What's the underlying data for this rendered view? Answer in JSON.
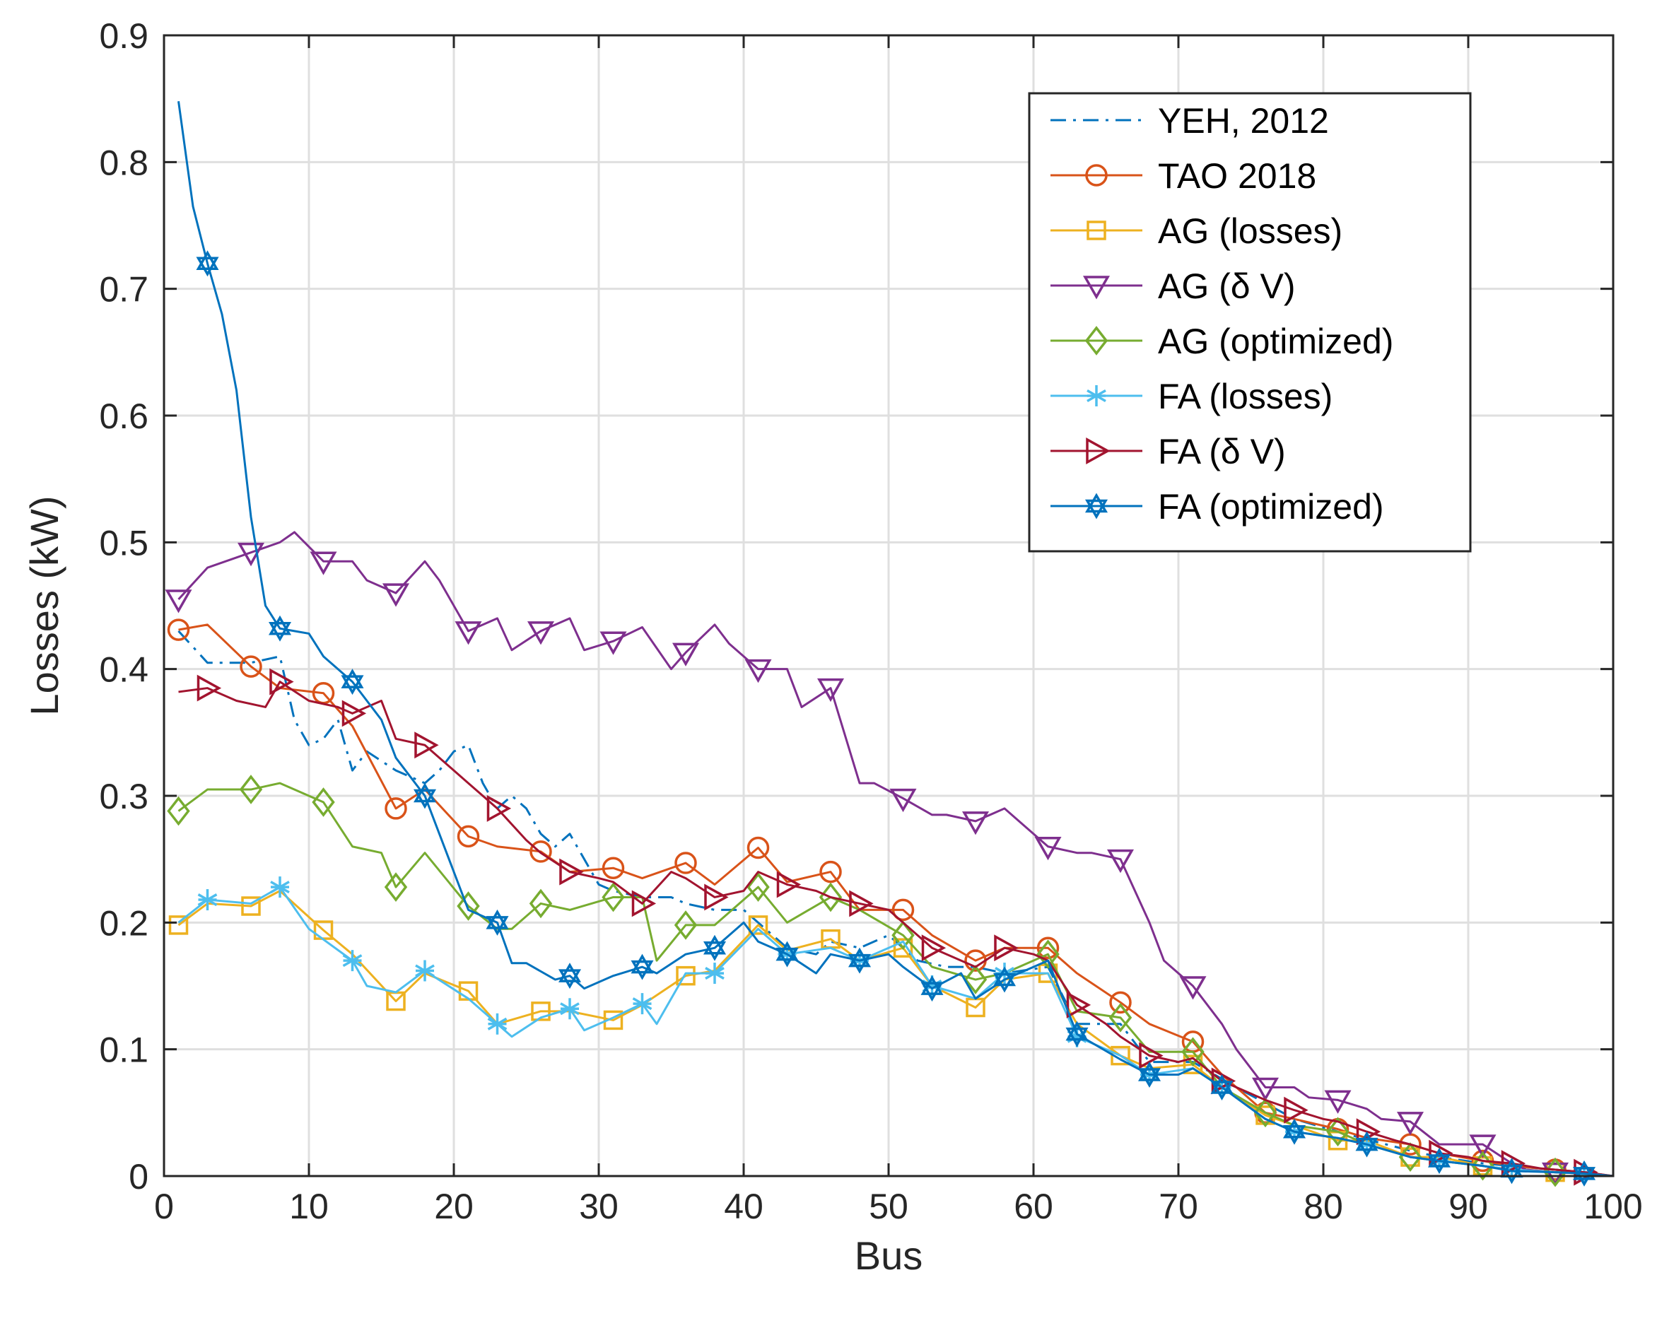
{
  "chart_data": {
    "type": "line",
    "xlabel": "Bus",
    "ylabel": "Losses (kW)",
    "xlim": [
      0,
      100
    ],
    "ylim": [
      0,
      0.9
    ],
    "xticks": [
      0,
      10,
      20,
      30,
      40,
      50,
      60,
      70,
      80,
      90,
      100
    ],
    "yticks": [
      0,
      0.1,
      0.2,
      0.3,
      0.4,
      0.5,
      0.6,
      0.7,
      0.8,
      0.9
    ],
    "xtick_labels": [
      "0",
      "10",
      "20",
      "30",
      "40",
      "50",
      "60",
      "70",
      "80",
      "90",
      "100"
    ],
    "ytick_labels": [
      "0",
      "0.1",
      "0.2",
      "0.3",
      "0.4",
      "0.5",
      "0.6",
      "0.7",
      "0.8",
      "0.9"
    ],
    "grid": true,
    "legend_position": "top-right",
    "series": [
      {
        "name": "YEH, 2012",
        "color": "#0072BD",
        "dash": "dashdot",
        "marker": "none",
        "x": [
          1,
          3,
          6,
          8,
          9,
          10,
          11,
          12,
          13,
          14,
          16,
          18,
          19,
          20,
          21,
          22,
          23,
          24,
          25,
          26,
          27,
          28,
          29,
          30,
          31,
          33,
          35,
          36,
          38,
          40,
          41,
          43,
          45,
          46,
          48,
          50,
          52,
          54,
          56,
          58,
          61,
          63,
          66,
          68,
          71,
          74,
          78,
          81,
          86,
          88,
          91,
          96,
          98,
          100
        ],
        "y": [
          0.43,
          0.405,
          0.405,
          0.41,
          0.36,
          0.34,
          0.345,
          0.36,
          0.32,
          0.335,
          0.32,
          0.31,
          0.32,
          0.335,
          0.34,
          0.31,
          0.29,
          0.3,
          0.29,
          0.27,
          0.26,
          0.27,
          0.25,
          0.23,
          0.225,
          0.22,
          0.22,
          0.215,
          0.21,
          0.21,
          0.2,
          0.18,
          0.175,
          0.185,
          0.18,
          0.19,
          0.17,
          0.165,
          0.165,
          0.16,
          0.165,
          0.12,
          0.12,
          0.09,
          0.09,
          0.07,
          0.045,
          0.035,
          0.02,
          0.015,
          0.01,
          0.005,
          0.003,
          0.0
        ]
      },
      {
        "name": "TAO 2018",
        "color": "#D95319",
        "dash": "solid",
        "marker": "circle",
        "x": [
          1,
          3,
          6,
          8,
          11,
          13,
          16,
          18,
          21,
          23,
          26,
          28,
          31,
          33,
          36,
          38,
          41,
          43,
          46,
          48,
          51,
          53,
          56,
          58,
          61,
          63,
          66,
          68,
          71,
          73,
          76,
          78,
          81,
          83,
          86,
          88,
          91,
          93,
          96,
          98,
          100
        ],
        "y": [
          0.431,
          0.435,
          0.402,
          0.385,
          0.381,
          0.355,
          0.29,
          0.305,
          0.268,
          0.26,
          0.256,
          0.24,
          0.243,
          0.235,
          0.247,
          0.23,
          0.259,
          0.232,
          0.24,
          0.21,
          0.21,
          0.19,
          0.17,
          0.18,
          0.18,
          0.16,
          0.137,
          0.12,
          0.106,
          0.08,
          0.05,
          0.045,
          0.037,
          0.03,
          0.025,
          0.018,
          0.012,
          0.008,
          0.005,
          0.003,
          0.0
        ],
        "marker_x": [
          1,
          6,
          11,
          16,
          21,
          26,
          31,
          36,
          41,
          46,
          51,
          56,
          61,
          66,
          71,
          76,
          81,
          86,
          91,
          96
        ],
        "marker_y": [
          0.431,
          0.402,
          0.381,
          0.29,
          0.268,
          0.256,
          0.243,
          0.247,
          0.259,
          0.24,
          0.21,
          0.17,
          0.18,
          0.137,
          0.106,
          0.05,
          0.037,
          0.025,
          0.012,
          0.005
        ]
      },
      {
        "name": "AG (losses)",
        "color": "#EDB120",
        "dash": "solid",
        "marker": "square",
        "x": [
          1,
          3,
          6,
          8,
          11,
          13,
          16,
          18,
          21,
          23,
          26,
          28,
          31,
          33,
          36,
          38,
          41,
          43,
          46,
          48,
          51,
          53,
          56,
          58,
          61,
          63,
          66,
          68,
          71,
          73,
          76,
          78,
          81,
          83,
          86,
          88,
          91,
          93,
          96,
          98,
          100
        ],
        "y": [
          0.198,
          0.215,
          0.213,
          0.225,
          0.194,
          0.175,
          0.138,
          0.16,
          0.146,
          0.12,
          0.13,
          0.13,
          0.123,
          0.135,
          0.158,
          0.162,
          0.198,
          0.178,
          0.187,
          0.17,
          0.18,
          0.15,
          0.133,
          0.155,
          0.16,
          0.12,
          0.095,
          0.085,
          0.088,
          0.07,
          0.048,
          0.04,
          0.028,
          0.028,
          0.015,
          0.015,
          0.008,
          0.005,
          0.003,
          0.002,
          0.0
        ],
        "marker_x": [
          1,
          6,
          11,
          16,
          21,
          26,
          31,
          36,
          41,
          46,
          51,
          56,
          61,
          66,
          71,
          76,
          81,
          86,
          91,
          96
        ],
        "marker_y": [
          0.198,
          0.213,
          0.194,
          0.138,
          0.146,
          0.13,
          0.123,
          0.158,
          0.198,
          0.187,
          0.18,
          0.133,
          0.16,
          0.095,
          0.088,
          0.048,
          0.028,
          0.015,
          0.008,
          0.003
        ]
      },
      {
        "name": "AG (δ V)",
        "color": "#7E2F8E",
        "dash": "solid",
        "marker": "triangle-down",
        "x": [
          1,
          3,
          6,
          8,
          9,
          11,
          13,
          14,
          16,
          18,
          19,
          21,
          23,
          24,
          26,
          28,
          29,
          31,
          33,
          35,
          36,
          38,
          39,
          41,
          43,
          44,
          46,
          48,
          49,
          51,
          53,
          54,
          56,
          58,
          59,
          61,
          63,
          64,
          66,
          68,
          69,
          71,
          73,
          74,
          76,
          78,
          79,
          81,
          83,
          84,
          86,
          88,
          89,
          91,
          93,
          94,
          96,
          98,
          100
        ],
        "y": [
          0.455,
          0.48,
          0.492,
          0.5,
          0.508,
          0.485,
          0.485,
          0.47,
          0.46,
          0.485,
          0.47,
          0.43,
          0.44,
          0.415,
          0.43,
          0.44,
          0.415,
          0.422,
          0.433,
          0.4,
          0.413,
          0.435,
          0.42,
          0.4,
          0.4,
          0.37,
          0.385,
          0.31,
          0.31,
          0.298,
          0.285,
          0.285,
          0.28,
          0.29,
          0.28,
          0.26,
          0.255,
          0.255,
          0.25,
          0.2,
          0.17,
          0.15,
          0.12,
          0.1,
          0.07,
          0.07,
          0.062,
          0.06,
          0.053,
          0.045,
          0.043,
          0.025,
          0.025,
          0.025,
          0.01,
          0.005,
          0.003,
          0.002,
          0.0
        ],
        "marker_x": [
          1,
          6,
          11,
          16,
          21,
          26,
          31,
          36,
          41,
          46,
          51,
          56,
          61,
          66,
          71,
          76,
          81,
          86,
          91,
          96
        ],
        "marker_y": [
          0.455,
          0.492,
          0.485,
          0.46,
          0.43,
          0.43,
          0.422,
          0.413,
          0.4,
          0.385,
          0.298,
          0.28,
          0.26,
          0.25,
          0.15,
          0.07,
          0.06,
          0.043,
          0.025,
          0.003
        ]
      },
      {
        "name": "AG (optimized)",
        "color": "#77AC30",
        "dash": "solid",
        "marker": "diamond",
        "x": [
          1,
          3,
          6,
          8,
          11,
          13,
          15,
          16,
          18,
          21,
          23,
          24,
          26,
          28,
          31,
          33,
          34,
          36,
          38,
          41,
          43,
          46,
          48,
          51,
          53,
          56,
          58,
          61,
          63,
          66,
          68,
          71,
          73,
          76,
          78,
          81,
          83,
          86,
          88,
          91,
          93,
          96,
          98,
          100
        ],
        "y": [
          0.288,
          0.305,
          0.305,
          0.31,
          0.295,
          0.26,
          0.255,
          0.228,
          0.255,
          0.213,
          0.195,
          0.195,
          0.215,
          0.21,
          0.22,
          0.22,
          0.17,
          0.198,
          0.198,
          0.228,
          0.2,
          0.22,
          0.21,
          0.19,
          0.165,
          0.155,
          0.16,
          0.175,
          0.13,
          0.125,
          0.098,
          0.098,
          0.07,
          0.05,
          0.04,
          0.035,
          0.025,
          0.015,
          0.012,
          0.008,
          0.005,
          0.003,
          0.002,
          0.0
        ],
        "marker_x": [
          1,
          6,
          11,
          16,
          21,
          26,
          31,
          36,
          41,
          46,
          51,
          56,
          61,
          66,
          71,
          76,
          81,
          86,
          91,
          96
        ],
        "marker_y": [
          0.288,
          0.305,
          0.295,
          0.228,
          0.213,
          0.215,
          0.22,
          0.198,
          0.228,
          0.22,
          0.19,
          0.155,
          0.175,
          0.125,
          0.098,
          0.05,
          0.035,
          0.015,
          0.008,
          0.003
        ]
      },
      {
        "name": "FA (losses)",
        "color": "#4DBEEE",
        "dash": "solid",
        "marker": "asterisk",
        "x": [
          1,
          3,
          6,
          8,
          10,
          13,
          14,
          16,
          18,
          21,
          23,
          24,
          26,
          28,
          29,
          31,
          33,
          34,
          36,
          38,
          41,
          43,
          46,
          48,
          51,
          53,
          56,
          58,
          61,
          63,
          66,
          68,
          71,
          73,
          76,
          78,
          81,
          83,
          86,
          88,
          91,
          93,
          96,
          98,
          100
        ],
        "y": [
          0.2,
          0.218,
          0.215,
          0.228,
          0.195,
          0.17,
          0.15,
          0.145,
          0.162,
          0.14,
          0.12,
          0.11,
          0.125,
          0.132,
          0.115,
          0.125,
          0.136,
          0.12,
          0.16,
          0.16,
          0.195,
          0.175,
          0.18,
          0.17,
          0.185,
          0.15,
          0.14,
          0.16,
          0.16,
          0.11,
          0.095,
          0.08,
          0.085,
          0.07,
          0.045,
          0.035,
          0.03,
          0.025,
          0.015,
          0.012,
          0.008,
          0.005,
          0.003,
          0.002,
          0.0
        ],
        "marker_x": [
          3,
          8,
          13,
          18,
          23,
          28,
          33,
          38,
          43,
          48,
          53,
          58,
          63,
          68,
          73,
          78,
          83,
          88,
          93,
          98
        ],
        "marker_y": [
          0.218,
          0.228,
          0.17,
          0.162,
          0.12,
          0.132,
          0.136,
          0.16,
          0.175,
          0.17,
          0.15,
          0.16,
          0.11,
          0.08,
          0.07,
          0.035,
          0.025,
          0.012,
          0.005,
          0.002
        ]
      },
      {
        "name": "FA (δ V)",
        "color": "#A2142F",
        "dash": "solid",
        "marker": "triangle-right",
        "x": [
          1,
          3,
          5,
          7,
          8,
          10,
          12,
          13,
          15,
          16,
          18,
          20,
          21,
          23,
          25,
          26,
          28,
          30,
          31,
          33,
          35,
          36,
          38,
          40,
          41,
          43,
          45,
          46,
          48,
          50,
          51,
          53,
          55,
          56,
          58,
          60,
          61,
          63,
          65,
          66,
          68,
          70,
          71,
          73,
          75,
          76,
          78,
          80,
          81,
          83,
          85,
          86,
          88,
          90,
          91,
          93,
          95,
          96,
          98,
          100
        ],
        "y": [
          0.382,
          0.385,
          0.375,
          0.37,
          0.39,
          0.375,
          0.37,
          0.365,
          0.375,
          0.345,
          0.34,
          0.32,
          0.31,
          0.29,
          0.265,
          0.255,
          0.24,
          0.235,
          0.232,
          0.215,
          0.24,
          0.235,
          0.22,
          0.225,
          0.24,
          0.23,
          0.225,
          0.22,
          0.215,
          0.21,
          0.2,
          0.18,
          0.17,
          0.165,
          0.18,
          0.175,
          0.17,
          0.135,
          0.12,
          0.11,
          0.095,
          0.09,
          0.093,
          0.075,
          0.065,
          0.06,
          0.052,
          0.045,
          0.043,
          0.035,
          0.028,
          0.025,
          0.018,
          0.015,
          0.012,
          0.01,
          0.006,
          0.005,
          0.003,
          0.0
        ],
        "marker_x": [
          3,
          8,
          13,
          18,
          23,
          28,
          33,
          38,
          43,
          48,
          53,
          58,
          63,
          68,
          73,
          78,
          83,
          88,
          93,
          98
        ],
        "marker_y": [
          0.385,
          0.39,
          0.365,
          0.34,
          0.29,
          0.24,
          0.215,
          0.22,
          0.23,
          0.215,
          0.18,
          0.18,
          0.135,
          0.095,
          0.075,
          0.052,
          0.035,
          0.018,
          0.01,
          0.003
        ]
      },
      {
        "name": "FA (optimized)",
        "color": "#0072BD",
        "dash": "solid",
        "marker": "hexagram",
        "x": [
          1,
          2,
          3,
          4,
          5,
          6,
          7,
          8,
          9,
          10,
          11,
          12,
          13,
          15,
          16,
          18,
          19,
          20,
          21,
          23,
          24,
          25,
          27,
          28,
          29,
          31,
          33,
          34,
          36,
          38,
          40,
          41,
          43,
          45,
          46,
          48,
          50,
          51,
          53,
          55,
          56,
          58,
          60,
          61,
          63,
          66,
          68,
          70,
          71,
          73,
          76,
          78,
          81,
          83,
          86,
          88,
          91,
          93,
          96,
          98,
          100
        ],
        "y": [
          0.848,
          0.765,
          0.72,
          0.68,
          0.62,
          0.52,
          0.45,
          0.432,
          0.43,
          0.428,
          0.41,
          0.4,
          0.39,
          0.36,
          0.33,
          0.3,
          0.27,
          0.24,
          0.21,
          0.2,
          0.168,
          0.168,
          0.155,
          0.158,
          0.148,
          0.158,
          0.165,
          0.16,
          0.175,
          0.18,
          0.2,
          0.185,
          0.175,
          0.16,
          0.175,
          0.17,
          0.175,
          0.165,
          0.148,
          0.16,
          0.14,
          0.155,
          0.165,
          0.17,
          0.112,
          0.092,
          0.08,
          0.08,
          0.085,
          0.07,
          0.045,
          0.035,
          0.03,
          0.025,
          0.015,
          0.012,
          0.008,
          0.004,
          0.003,
          0.002,
          0.0
        ],
        "marker_x": [
          3,
          8,
          13,
          18,
          23,
          28,
          33,
          38,
          43,
          48,
          53,
          58,
          63,
          68,
          73,
          78,
          83,
          88,
          93,
          98
        ],
        "marker_y": [
          0.72,
          0.432,
          0.39,
          0.3,
          0.2,
          0.158,
          0.165,
          0.18,
          0.175,
          0.17,
          0.148,
          0.155,
          0.112,
          0.08,
          0.07,
          0.035,
          0.025,
          0.012,
          0.004,
          0.002
        ]
      }
    ]
  }
}
